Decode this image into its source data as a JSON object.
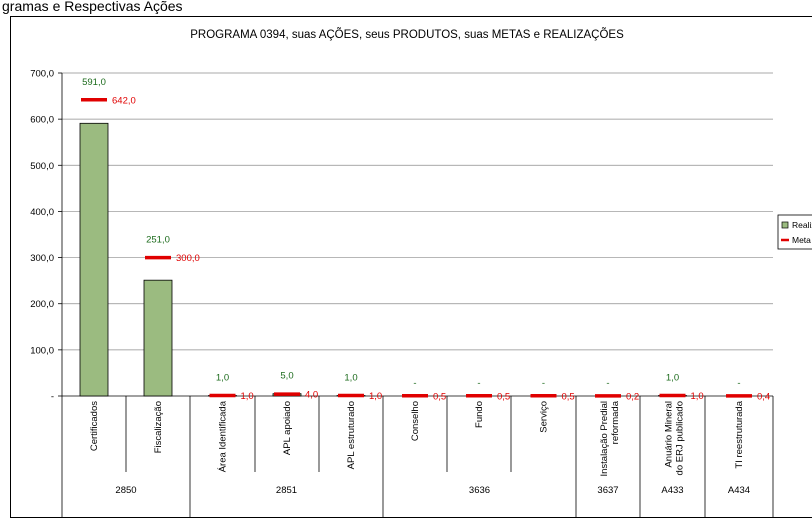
{
  "caption": "gramas e Respectivas Ações",
  "chart_data": {
    "type": "bar",
    "title": "PROGRAMA 0394, suas AÇÕES, seus PRODUTOS, suas METAS e REALIZAÇÕES",
    "xlabel": "",
    "ylabel": "",
    "ylim": [
      0,
      700
    ],
    "yticks": [
      "-",
      "100,0",
      "200,0",
      "300,0",
      "400,0",
      "500,0",
      "600,0",
      "700,0"
    ],
    "grid": true,
    "legend_position": "right",
    "categories": [
      "Certificados",
      "Fiscalização",
      "Área Identificada",
      "APL apoiado",
      "APL estruturado",
      "Conselho",
      "Fundo",
      "Serviço",
      "Instalação Predial reformada",
      "Anuário Mineral do ERJ publicado",
      "TI reestruturada"
    ],
    "groups": [
      {
        "label": "2850",
        "span": 2
      },
      {
        "label": "2851",
        "span": 3
      },
      {
        "label": "3636",
        "span": 3
      },
      {
        "label": "3637",
        "span": 1
      },
      {
        "label": "A433",
        "span": 1
      },
      {
        "label": "A434",
        "span": 1
      }
    ],
    "series": [
      {
        "name": "Realizado",
        "kind": "bar",
        "color": "#9bbb80",
        "values": [
          591.0,
          251.0,
          1.0,
          5.0,
          1.0,
          0,
          0,
          0,
          0,
          1.0,
          0
        ],
        "labels": [
          "591,0",
          "251,0",
          "1,0",
          "5,0",
          "1,0",
          "-",
          "-",
          "-",
          "-",
          "1,0",
          "-"
        ]
      },
      {
        "name": "Meta",
        "kind": "marker",
        "color": "#e00000",
        "values": [
          642.0,
          300.0,
          1.0,
          4.0,
          1.0,
          0.5,
          0.5,
          0.5,
          0.2,
          1.0,
          0.4
        ],
        "labels": [
          "642,0",
          "300,0",
          "1,0",
          "4,0",
          "1,0",
          "0,5",
          "0,5",
          "0,5",
          "0,2",
          "1,0",
          "0,4"
        ]
      }
    ]
  }
}
